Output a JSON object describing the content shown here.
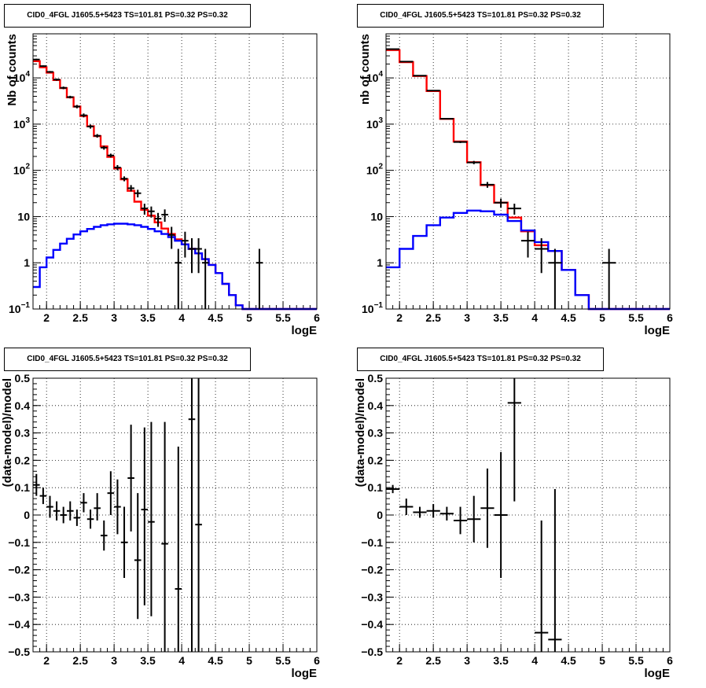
{
  "chart_data": [
    {
      "type": "line",
      "title": "CID0_4FGL J1605.5+5423 TS=101.81 PS=0.32 PS=0.32",
      "xlabel": "logE",
      "ylabel": "Nb of counts",
      "xlim": [
        1.8,
        6.0
      ],
      "ylim": [
        0.1,
        90000
      ],
      "yscale": "log",
      "xticks": [
        "2",
        "2.5",
        "3",
        "3.5",
        "4",
        "4.5",
        "5",
        "5.5",
        "6"
      ],
      "yticks": [
        {
          "v": 0.1,
          "base": "10",
          "exp": "−1"
        },
        {
          "v": 1,
          "label": "1"
        },
        {
          "v": 10,
          "label": "10"
        },
        {
          "v": 100,
          "base": "10",
          "exp": "2"
        },
        {
          "v": 1000,
          "base": "10",
          "exp": "3"
        },
        {
          "v": 10000,
          "base": "10",
          "exp": "4"
        }
      ],
      "grid": true,
      "bin_edges": [
        1.8,
        1.9,
        2.0,
        2.1,
        2.2,
        2.3,
        2.4,
        2.5,
        2.6,
        2.7,
        2.8,
        2.9,
        3.0,
        3.1,
        3.2,
        3.3,
        3.4,
        3.5,
        3.6,
        3.7,
        3.8,
        3.9,
        4.0,
        4.1,
        4.2,
        4.3,
        4.4,
        4.5,
        4.6,
        4.7,
        4.8,
        4.9,
        5.0,
        5.1,
        5.2,
        5.3,
        5.4,
        5.5,
        5.6,
        5.7,
        5.8,
        5.9,
        6.0
      ],
      "series": [
        {
          "color": "#ff0000",
          "kind": "histogram",
          "values": [
            23000,
            17000,
            13000,
            9000,
            6000,
            3800,
            2400,
            1500,
            900,
            550,
            330,
            195,
            110,
            64,
            36,
            21,
            14,
            10.5,
            7.5,
            5.5,
            4.2,
            3.2,
            2.5,
            2.0,
            1.6,
            1.2,
            0.9,
            0.6,
            0.35,
            0.2,
            0.12,
            0.1,
            0.1,
            0.1,
            0.1,
            0.1,
            0.1,
            0.1,
            0.1,
            0.1,
            0.1,
            0.1
          ]
        },
        {
          "color": "#0000ff",
          "kind": "histogram",
          "values": [
            0.3,
            0.8,
            1.3,
            1.9,
            2.6,
            3.3,
            4.1,
            4.8,
            5.4,
            6.0,
            6.5,
            6.8,
            7.0,
            7.0,
            6.8,
            6.5,
            6.0,
            5.4,
            4.8,
            4.2,
            3.6,
            3.0,
            2.5,
            2.0,
            1.6,
            1.2,
            0.9,
            0.6,
            0.35,
            0.2,
            0.12,
            0.1,
            0.1,
            0.1,
            0.1,
            0.1,
            0.1,
            0.1,
            0.1,
            0.1,
            0.1,
            0.1
          ]
        },
        {
          "color": "#000000",
          "kind": "points",
          "points": [
            {
              "x": 1.85,
              "y": 25000,
              "lo": 24000,
              "hi": 26000
            },
            {
              "x": 1.95,
              "y": 18000,
              "lo": 17300,
              "hi": 18700
            },
            {
              "x": 2.05,
              "y": 13500,
              "lo": 12900,
              "hi": 14100
            },
            {
              "x": 2.15,
              "y": 9200,
              "lo": 8700,
              "hi": 9700
            },
            {
              "x": 2.25,
              "y": 6100,
              "lo": 5700,
              "hi": 6500
            },
            {
              "x": 2.35,
              "y": 3850,
              "lo": 3600,
              "hi": 4100
            },
            {
              "x": 2.45,
              "y": 2400,
              "lo": 2200,
              "hi": 2600
            },
            {
              "x": 2.55,
              "y": 1550,
              "lo": 1400,
              "hi": 1700
            },
            {
              "x": 2.65,
              "y": 890,
              "lo": 800,
              "hi": 980
            },
            {
              "x": 2.75,
              "y": 560,
              "lo": 510,
              "hi": 610
            },
            {
              "x": 2.85,
              "y": 310,
              "lo": 280,
              "hi": 340
            },
            {
              "x": 2.95,
              "y": 210,
              "lo": 190,
              "hi": 230
            },
            {
              "x": 3.05,
              "y": 115,
              "lo": 100,
              "hi": 130
            },
            {
              "x": 3.15,
              "y": 66,
              "lo": 58,
              "hi": 74
            },
            {
              "x": 3.25,
              "y": 41,
              "lo": 35,
              "hi": 48
            },
            {
              "x": 3.35,
              "y": 32,
              "lo": 26,
              "hi": 38
            },
            {
              "x": 3.45,
              "y": 15,
              "lo": 11,
              "hi": 19
            },
            {
              "x": 3.55,
              "y": 13,
              "lo": 9.5,
              "hi": 16.5
            },
            {
              "x": 3.65,
              "y": 9,
              "lo": 6,
              "hi": 12
            },
            {
              "x": 3.75,
              "y": 11,
              "lo": 7.7,
              "hi": 14.3
            },
            {
              "x": 3.85,
              "y": 4,
              "lo": 2,
              "hi": 6
            },
            {
              "x": 3.95,
              "y": 1,
              "lo": 0.1,
              "hi": 2
            },
            {
              "x": 4.05,
              "y": 3,
              "lo": 1.3,
              "hi": 4.7
            },
            {
              "x": 4.15,
              "y": 2,
              "lo": 0.6,
              "hi": 3.4
            },
            {
              "x": 4.25,
              "y": 2,
              "lo": 0.6,
              "hi": 3.4
            },
            {
              "x": 4.35,
              "y": 1,
              "lo": 0.1,
              "hi": 2
            },
            {
              "x": 5.15,
              "y": 1,
              "lo": 0.1,
              "hi": 2
            }
          ]
        }
      ]
    },
    {
      "type": "line",
      "title": "CID0_4FGL J1605.5+5423 TS=101.81 PS=0.32 PS=0.32",
      "xlabel": "logE",
      "ylabel": "nb of counts",
      "xlim": [
        1.8,
        6.0
      ],
      "ylim": [
        0.1,
        90000
      ],
      "yscale": "log",
      "xticks": [
        "2",
        "2.5",
        "3",
        "3.5",
        "4",
        "4.5",
        "5",
        "5.5",
        "6"
      ],
      "yticks": [
        {
          "v": 0.1,
          "base": "10",
          "exp": "−1"
        },
        {
          "v": 1,
          "label": "1"
        },
        {
          "v": 10,
          "label": "10"
        },
        {
          "v": 100,
          "base": "10",
          "exp": "2"
        },
        {
          "v": 1000,
          "base": "10",
          "exp": "3"
        },
        {
          "v": 10000,
          "base": "10",
          "exp": "4"
        }
      ],
      "grid": true,
      "bin_edges": [
        1.8,
        2.0,
        2.2,
        2.4,
        2.6,
        2.8,
        3.0,
        3.2,
        3.4,
        3.6,
        3.8,
        4.0,
        4.2,
        4.4,
        4.6,
        4.8,
        5.0,
        5.2,
        5.4,
        5.6,
        5.8,
        6.0
      ],
      "series": [
        {
          "color": "#ff0000",
          "kind": "histogram",
          "values": [
            40000,
            22000,
            11000,
            5200,
            1300,
            420,
            150,
            48,
            20,
            9.5,
            4.8,
            2.4,
            1.8,
            0.7,
            0.2,
            0.1,
            0.1,
            0.1,
            0.1,
            0.1,
            0.1
          ]
        },
        {
          "color": "#0000ff",
          "kind": "histogram",
          "values": [
            0.8,
            2.0,
            3.8,
            6.5,
            9.5,
            12.0,
            13.5,
            13.0,
            11.0,
            8.0,
            5.0,
            2.8,
            1.8,
            0.7,
            0.2,
            0.1,
            0.1,
            0.1,
            0.1,
            0.1,
            0.1
          ]
        },
        {
          "color": "#000000",
          "kind": "points",
          "points": [
            {
              "x": 1.9,
              "y": 42000,
              "lo": 41000,
              "hi": 43000
            },
            {
              "x": 2.1,
              "y": 22500,
              "lo": 22000,
              "hi": 23000
            },
            {
              "x": 2.3,
              "y": 11200,
              "lo": 10900,
              "hi": 11500
            },
            {
              "x": 2.5,
              "y": 5300,
              "lo": 5150,
              "hi": 5450
            },
            {
              "x": 2.7,
              "y": 1310,
              "lo": 1270,
              "hi": 1350
            },
            {
              "x": 2.9,
              "y": 410,
              "lo": 390,
              "hi": 430
            },
            {
              "x": 3.1,
              "y": 148,
              "lo": 136,
              "hi": 160
            },
            {
              "x": 3.3,
              "y": 49,
              "lo": 42,
              "hi": 56
            },
            {
              "x": 3.5,
              "y": 20,
              "lo": 15.5,
              "hi": 24.5
            },
            {
              "x": 3.7,
              "y": 15,
              "lo": 11,
              "hi": 19
            },
            {
              "x": 3.9,
              "y": 3,
              "lo": 1.3,
              "hi": 4.7
            },
            {
              "x": 4.1,
              "y": 2,
              "lo": 0.6,
              "hi": 3.4
            },
            {
              "x": 4.3,
              "y": 1,
              "lo": 0.1,
              "hi": 2
            },
            {
              "x": 5.1,
              "y": 1,
              "lo": 0.1,
              "hi": 2
            }
          ]
        }
      ]
    },
    {
      "type": "scatter",
      "title": "CID0_4FGL J1605.5+5423 TS=101.81 PS=0.32 PS=0.32",
      "xlabel": "logE",
      "ylabel": "(data-model)/model",
      "xlim": [
        1.8,
        6.0
      ],
      "ylim": [
        -0.5,
        0.5
      ],
      "yscale": "linear",
      "xticks": [
        "2",
        "2.5",
        "3",
        "3.5",
        "4",
        "4.5",
        "5",
        "5.5",
        "6"
      ],
      "yticks": [
        {
          "v": -0.5,
          "label": "−0.5"
        },
        {
          "v": -0.4,
          "label": "−0.4"
        },
        {
          "v": -0.3,
          "label": "−0.3"
        },
        {
          "v": -0.2,
          "label": "−0.2"
        },
        {
          "v": -0.1,
          "label": "−0.1"
        },
        {
          "v": 0,
          "label": "0"
        },
        {
          "v": 0.1,
          "label": "0.1"
        },
        {
          "v": 0.2,
          "label": "0.2"
        },
        {
          "v": 0.3,
          "label": "0.3"
        },
        {
          "v": 0.4,
          "label": "0.4"
        },
        {
          "v": 0.5,
          "label": "0.5"
        }
      ],
      "grid": true,
      "halfwidth": 0.05,
      "series": [
        {
          "color": "#000000",
          "kind": "points",
          "points": [
            {
              "x": 1.85,
              "y": 0.11,
              "lo": 0.07,
              "hi": 0.15
            },
            {
              "x": 1.95,
              "y": 0.07,
              "lo": 0.04,
              "hi": 0.1
            },
            {
              "x": 2.05,
              "y": 0.03,
              "lo": -0.01,
              "hi": 0.07
            },
            {
              "x": 2.15,
              "y": 0.015,
              "lo": -0.02,
              "hi": 0.05
            },
            {
              "x": 2.25,
              "y": 0.0,
              "lo": -0.03,
              "hi": 0.03
            },
            {
              "x": 2.35,
              "y": 0.015,
              "lo": -0.02,
              "hi": 0.05
            },
            {
              "x": 2.45,
              "y": -0.01,
              "lo": -0.04,
              "hi": 0.02
            },
            {
              "x": 2.55,
              "y": 0.045,
              "lo": 0.01,
              "hi": 0.08
            },
            {
              "x": 2.65,
              "y": -0.015,
              "lo": -0.05,
              "hi": 0.02
            },
            {
              "x": 2.75,
              "y": 0.025,
              "lo": -0.02,
              "hi": 0.08
            },
            {
              "x": 2.85,
              "y": -0.075,
              "lo": -0.13,
              "hi": -0.02
            },
            {
              "x": 2.95,
              "y": 0.08,
              "lo": 0.0,
              "hi": 0.16
            },
            {
              "x": 3.05,
              "y": 0.03,
              "lo": -0.07,
              "hi": 0.13
            },
            {
              "x": 3.15,
              "y": -0.1,
              "lo": -0.23,
              "hi": 0.03
            },
            {
              "x": 3.25,
              "y": 0.135,
              "lo": -0.06,
              "hi": 0.33
            },
            {
              "x": 3.35,
              "y": -0.165,
              "lo": -0.38,
              "hi": 0.08
            },
            {
              "x": 3.45,
              "y": 0.02,
              "lo": -0.33,
              "hi": 0.32
            },
            {
              "x": 3.55,
              "y": -0.025,
              "lo": -0.37,
              "hi": 0.34
            },
            {
              "x": 3.75,
              "y": -0.105,
              "lo": -0.55,
              "hi": 0.34
            },
            {
              "x": 3.95,
              "y": -0.27,
              "lo": -0.55,
              "hi": 0.25
            },
            {
              "x": 4.15,
              "y": 0.35,
              "lo": -0.55,
              "hi": 0.55
            },
            {
              "x": 4.25,
              "y": -0.035,
              "lo": -0.55,
              "hi": 0.55
            }
          ]
        }
      ]
    },
    {
      "type": "scatter",
      "title": "CID0_4FGL J1605.5+5423 TS=101.81 PS=0.32 PS=0.32",
      "xlabel": "logE",
      "ylabel": "(data-model)/model",
      "xlim": [
        1.8,
        6.0
      ],
      "ylim": [
        -0.5,
        0.5
      ],
      "yscale": "linear",
      "xticks": [
        "2",
        "2.5",
        "3",
        "3.5",
        "4",
        "4.5",
        "5",
        "5.5",
        "6"
      ],
      "yticks": [
        {
          "v": -0.5,
          "label": "−0.5"
        },
        {
          "v": -0.4,
          "label": "−0.4"
        },
        {
          "v": -0.3,
          "label": "−0.3"
        },
        {
          "v": -0.2,
          "label": "−0.2"
        },
        {
          "v": -0.1,
          "label": "−0.1"
        },
        {
          "v": 0,
          "label": "0"
        },
        {
          "v": 0.1,
          "label": "0.1"
        },
        {
          "v": 0.2,
          "label": "0.2"
        },
        {
          "v": 0.3,
          "label": "0.3"
        },
        {
          "v": 0.4,
          "label": "0.4"
        },
        {
          "v": 0.5,
          "label": "0.5"
        }
      ],
      "grid": true,
      "halfwidth": 0.1,
      "series": [
        {
          "color": "#000000",
          "kind": "points",
          "points": [
            {
              "x": 1.9,
              "y": 0.095,
              "lo": 0.08,
              "hi": 0.11
            },
            {
              "x": 2.1,
              "y": 0.03,
              "lo": 0.0,
              "hi": 0.06
            },
            {
              "x": 2.3,
              "y": 0.01,
              "lo": -0.01,
              "hi": 0.03
            },
            {
              "x": 2.5,
              "y": 0.015,
              "lo": -0.01,
              "hi": 0.04
            },
            {
              "x": 2.7,
              "y": 0.005,
              "lo": -0.02,
              "hi": 0.03
            },
            {
              "x": 2.9,
              "y": -0.02,
              "lo": -0.07,
              "hi": 0.03
            },
            {
              "x": 3.1,
              "y": -0.015,
              "lo": -0.1,
              "hi": 0.07
            },
            {
              "x": 3.3,
              "y": 0.025,
              "lo": -0.12,
              "hi": 0.17
            },
            {
              "x": 3.5,
              "y": 0.0,
              "lo": -0.23,
              "hi": 0.23
            },
            {
              "x": 3.7,
              "y": 0.41,
              "lo": 0.05,
              "hi": 0.5
            },
            {
              "x": 4.1,
              "y": -0.43,
              "lo": -0.5,
              "hi": -0.02
            },
            {
              "x": 4.3,
              "y": -0.455,
              "lo": -0.5,
              "hi": 0.095
            }
          ]
        }
      ]
    }
  ]
}
